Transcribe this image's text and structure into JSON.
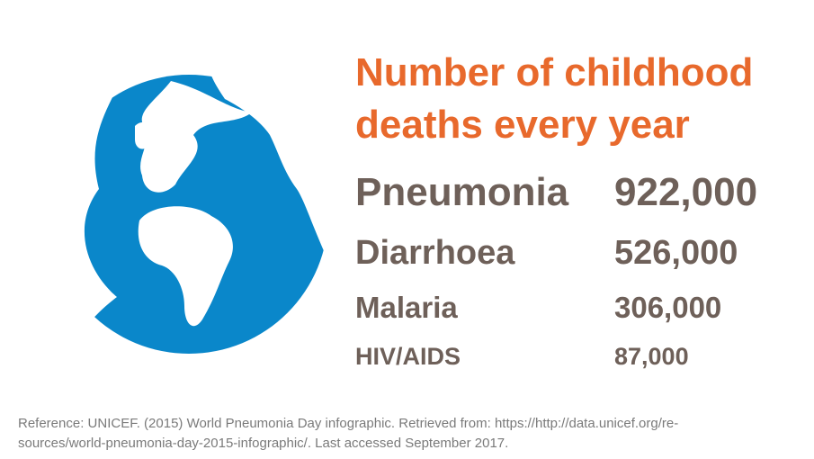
{
  "title_lines": [
    "Number of childhood",
    "deaths every year"
  ],
  "rows": [
    [
      "Pneumonia",
      "922,000"
    ],
    [
      "Diarrhoea",
      "526,000"
    ],
    [
      "Malaria",
      "306,000"
    ],
    [
      "HIV/AIDS",
      "87,000"
    ]
  ],
  "reference_lines": [
    "Reference: UNICEF. (2015) World Pneumonia Day infographic. Retrieved from: https://http://data.unicef.org/re-",
    "sources/world-pneumonia-day-2015-infographic/. Last accessed September 2017."
  ]
}
